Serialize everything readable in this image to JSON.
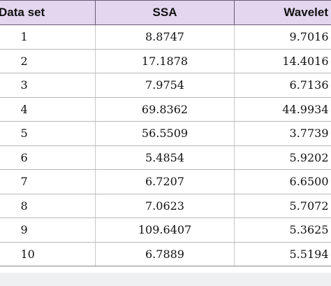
{
  "table": {
    "headers": [
      "Data set",
      "SSA",
      "Wavelet"
    ],
    "rows": [
      [
        "1",
        "8.8747",
        "9.7016"
      ],
      [
        "2",
        "17.1878",
        "14.4016"
      ],
      [
        "3",
        "7.9754",
        "6.7136"
      ],
      [
        "4",
        "69.8362",
        "44.9934"
      ],
      [
        "5",
        "56.5509",
        "3.7739"
      ],
      [
        "6",
        "5.4854",
        "5.9202"
      ],
      [
        "7",
        "6.7207",
        "6.6500"
      ],
      [
        "8",
        "7.0623",
        "5.7072"
      ],
      [
        "9",
        "109.6407",
        "5.3625"
      ],
      [
        "10",
        "6.7889",
        "5.5194"
      ]
    ]
  },
  "colors": {
    "header_bg": "#e3d7ef",
    "footer_bg": "#eef0f2"
  }
}
